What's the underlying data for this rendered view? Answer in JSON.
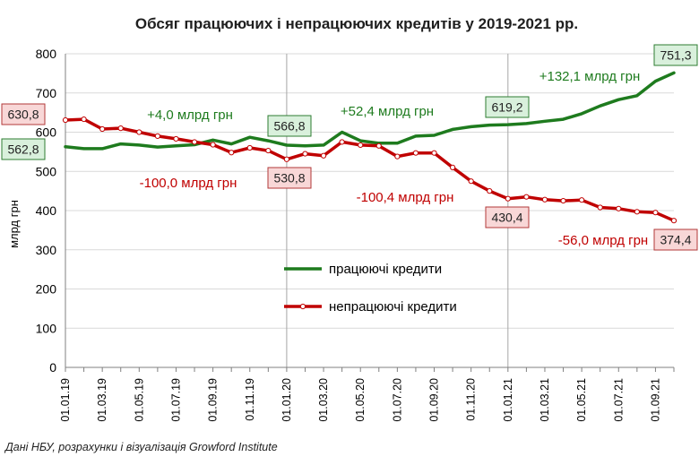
{
  "chart_data": {
    "type": "line",
    "title": "Обсяг працюючих і непрацюючих кредитів у 2019-2021 рр.",
    "ylabel": "млрд  грн",
    "xlabel": "",
    "ylim": [
      0,
      800
    ],
    "yticks": [
      "0",
      "100",
      "200",
      "300",
      "400",
      "500",
      "600",
      "700",
      "800"
    ],
    "x_ticklabels": [
      "01.01.19",
      "01.03.19",
      "01.05.19",
      "01.07.19",
      "01.09.19",
      "01.11.19",
      "01.01.20",
      "01.03.20",
      "01.05.20",
      "01.07.20",
      "01.09.20",
      "01.11.20",
      "01.01.21",
      "01.03.21",
      "01.05.21",
      "01.07.21",
      "01.09.21"
    ],
    "x": [
      "01.01.19",
      "01.02.19",
      "01.03.19",
      "01.04.19",
      "01.05.19",
      "01.06.19",
      "01.07.19",
      "01.08.19",
      "01.09.19",
      "01.10.19",
      "01.11.19",
      "01.12.19",
      "01.01.20",
      "01.02.20",
      "01.03.20",
      "01.04.20",
      "01.05.20",
      "01.06.20",
      "01.07.20",
      "01.08.20",
      "01.09.20",
      "01.10.20",
      "01.11.20",
      "01.12.20",
      "01.01.21",
      "01.02.21",
      "01.03.21",
      "01.04.21",
      "01.05.21",
      "01.06.21",
      "01.07.21",
      "01.08.21",
      "01.09.21",
      "01.10.21"
    ],
    "grid": "vertical lines at 01.01.20 and 01.01.21",
    "legend_position": "center-right",
    "series": [
      {
        "name": "працюючі кредити",
        "color": "#1e7b1e",
        "values": [
          562.8,
          558,
          558,
          570,
          567,
          562,
          565,
          568,
          580,
          570,
          587,
          578,
          566.8,
          565,
          567,
          600,
          578,
          572,
          572,
          590,
          592,
          607,
          614,
          618,
          619.2,
          622,
          628,
          633,
          647,
          667,
          683,
          693,
          730,
          751.3
        ]
      },
      {
        "name": "непрацюючі кредити",
        "color": "#c00000",
        "marker": "circle",
        "values": [
          630.8,
          633,
          608,
          610,
          600,
          590,
          583,
          575,
          568,
          548,
          560,
          553,
          530.8,
          545,
          540,
          575,
          567,
          565,
          538,
          547,
          547,
          510,
          475,
          450,
          430.4,
          435,
          428,
          425,
          427,
          408,
          405,
          397,
          395,
          374.4
        ]
      }
    ],
    "annotations": [
      {
        "text": "+4,0 млрд грн",
        "color": "#1e7b1e"
      },
      {
        "text": "+52,4 млрд грн",
        "color": "#1e7b1e"
      },
      {
        "text": "+132,1 млрд грн",
        "color": "#1e7b1e"
      },
      {
        "text": "-100,0 млрд грн",
        "color": "#c00000"
      },
      {
        "text": "-100,4 млрд грн",
        "color": "#c00000"
      },
      {
        "text": "-56,0 млрд грн",
        "color": "#c00000"
      }
    ],
    "value_labels": [
      {
        "text": "630,8",
        "series": 1,
        "index": 0
      },
      {
        "text": "562,8",
        "series": 0,
        "index": 0
      },
      {
        "text": "566,8",
        "series": 0,
        "index": 12
      },
      {
        "text": "530,8",
        "series": 1,
        "index": 12
      },
      {
        "text": "619,2",
        "series": 0,
        "index": 24
      },
      {
        "text": "430,4",
        "series": 1,
        "index": 24
      },
      {
        "text": "751,3",
        "series": 0,
        "index": 33
      },
      {
        "text": "374,4",
        "series": 1,
        "index": 33
      }
    ],
    "source_note": "Дані НБУ, розрахунки і візуалізація Growford Institute"
  }
}
